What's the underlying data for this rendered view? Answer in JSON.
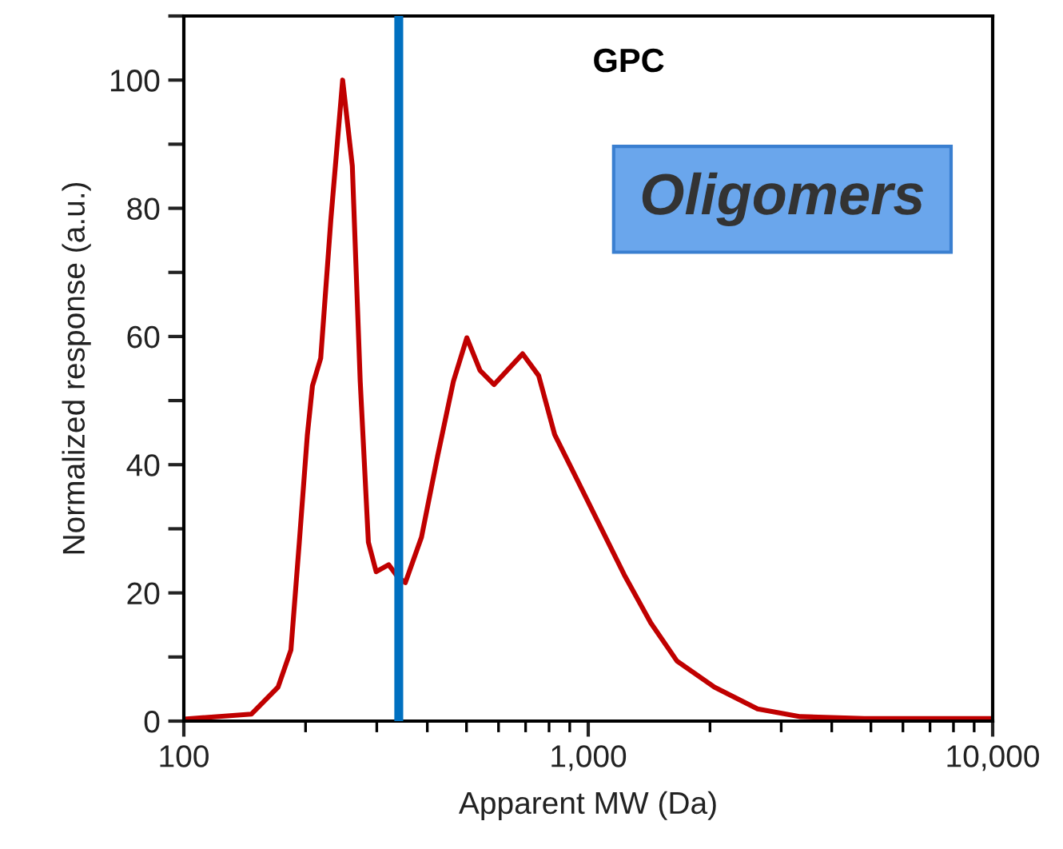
{
  "chart_data": {
    "type": "line",
    "title": "GPC",
    "xlabel": "Apparent MW (Da)",
    "ylabel": "Normalized response (a.u.)",
    "log": "x",
    "x": [
      100,
      147,
      171,
      184,
      193,
      202,
      208,
      218,
      231,
      247,
      261,
      273,
      286,
      299,
      321,
      338,
      353,
      387,
      424,
      464,
      501,
      540,
      585,
      688,
      754,
      826,
      933,
      1055,
      1228,
      1428,
      1656,
      2051,
      2622,
      3345,
      4818,
      10000
    ],
    "series": [
      {
        "color": "#c00000",
        "values": [
          0.3,
          1.1,
          5.3,
          11.1,
          27.9,
          44.6,
          52.3,
          56.6,
          78.3,
          100,
          86.6,
          53,
          27.9,
          23.3,
          24.4,
          22.5,
          21.6,
          28.7,
          41.3,
          53,
          59.8,
          54.7,
          52.5,
          57.3,
          53.9,
          44.7,
          38,
          31.2,
          22.8,
          15.3,
          9.4,
          5.3,
          1.9,
          0.7,
          0.4,
          0.4
        ]
      }
    ],
    "xlim": [
      100,
      10000
    ],
    "xticks": [
      {
        "value": 100,
        "label": "100"
      },
      {
        "value": 1000,
        "label": "1,000"
      },
      {
        "value": 10000,
        "label": "10,000"
      }
    ],
    "ylim": [
      0,
      110
    ],
    "yticks": [
      0,
      {
        "value": 10,
        "label": null
      },
      20,
      {
        "value": 30,
        "label": null
      },
      40,
      {
        "value": 50,
        "label": null
      },
      60,
      {
        "value": 70,
        "label": null
      },
      80,
      {
        "value": 90,
        "label": null
      },
      100,
      {
        "value": 110,
        "label": null
      }
    ],
    "ref_lines": [
      {
        "axis": "x",
        "value": 340,
        "color": "#0070c0"
      }
    ],
    "annotations": [
      "Oligomers"
    ],
    "grid": false,
    "legend": false,
    "marker": "none",
    "line_style": "solid"
  }
}
